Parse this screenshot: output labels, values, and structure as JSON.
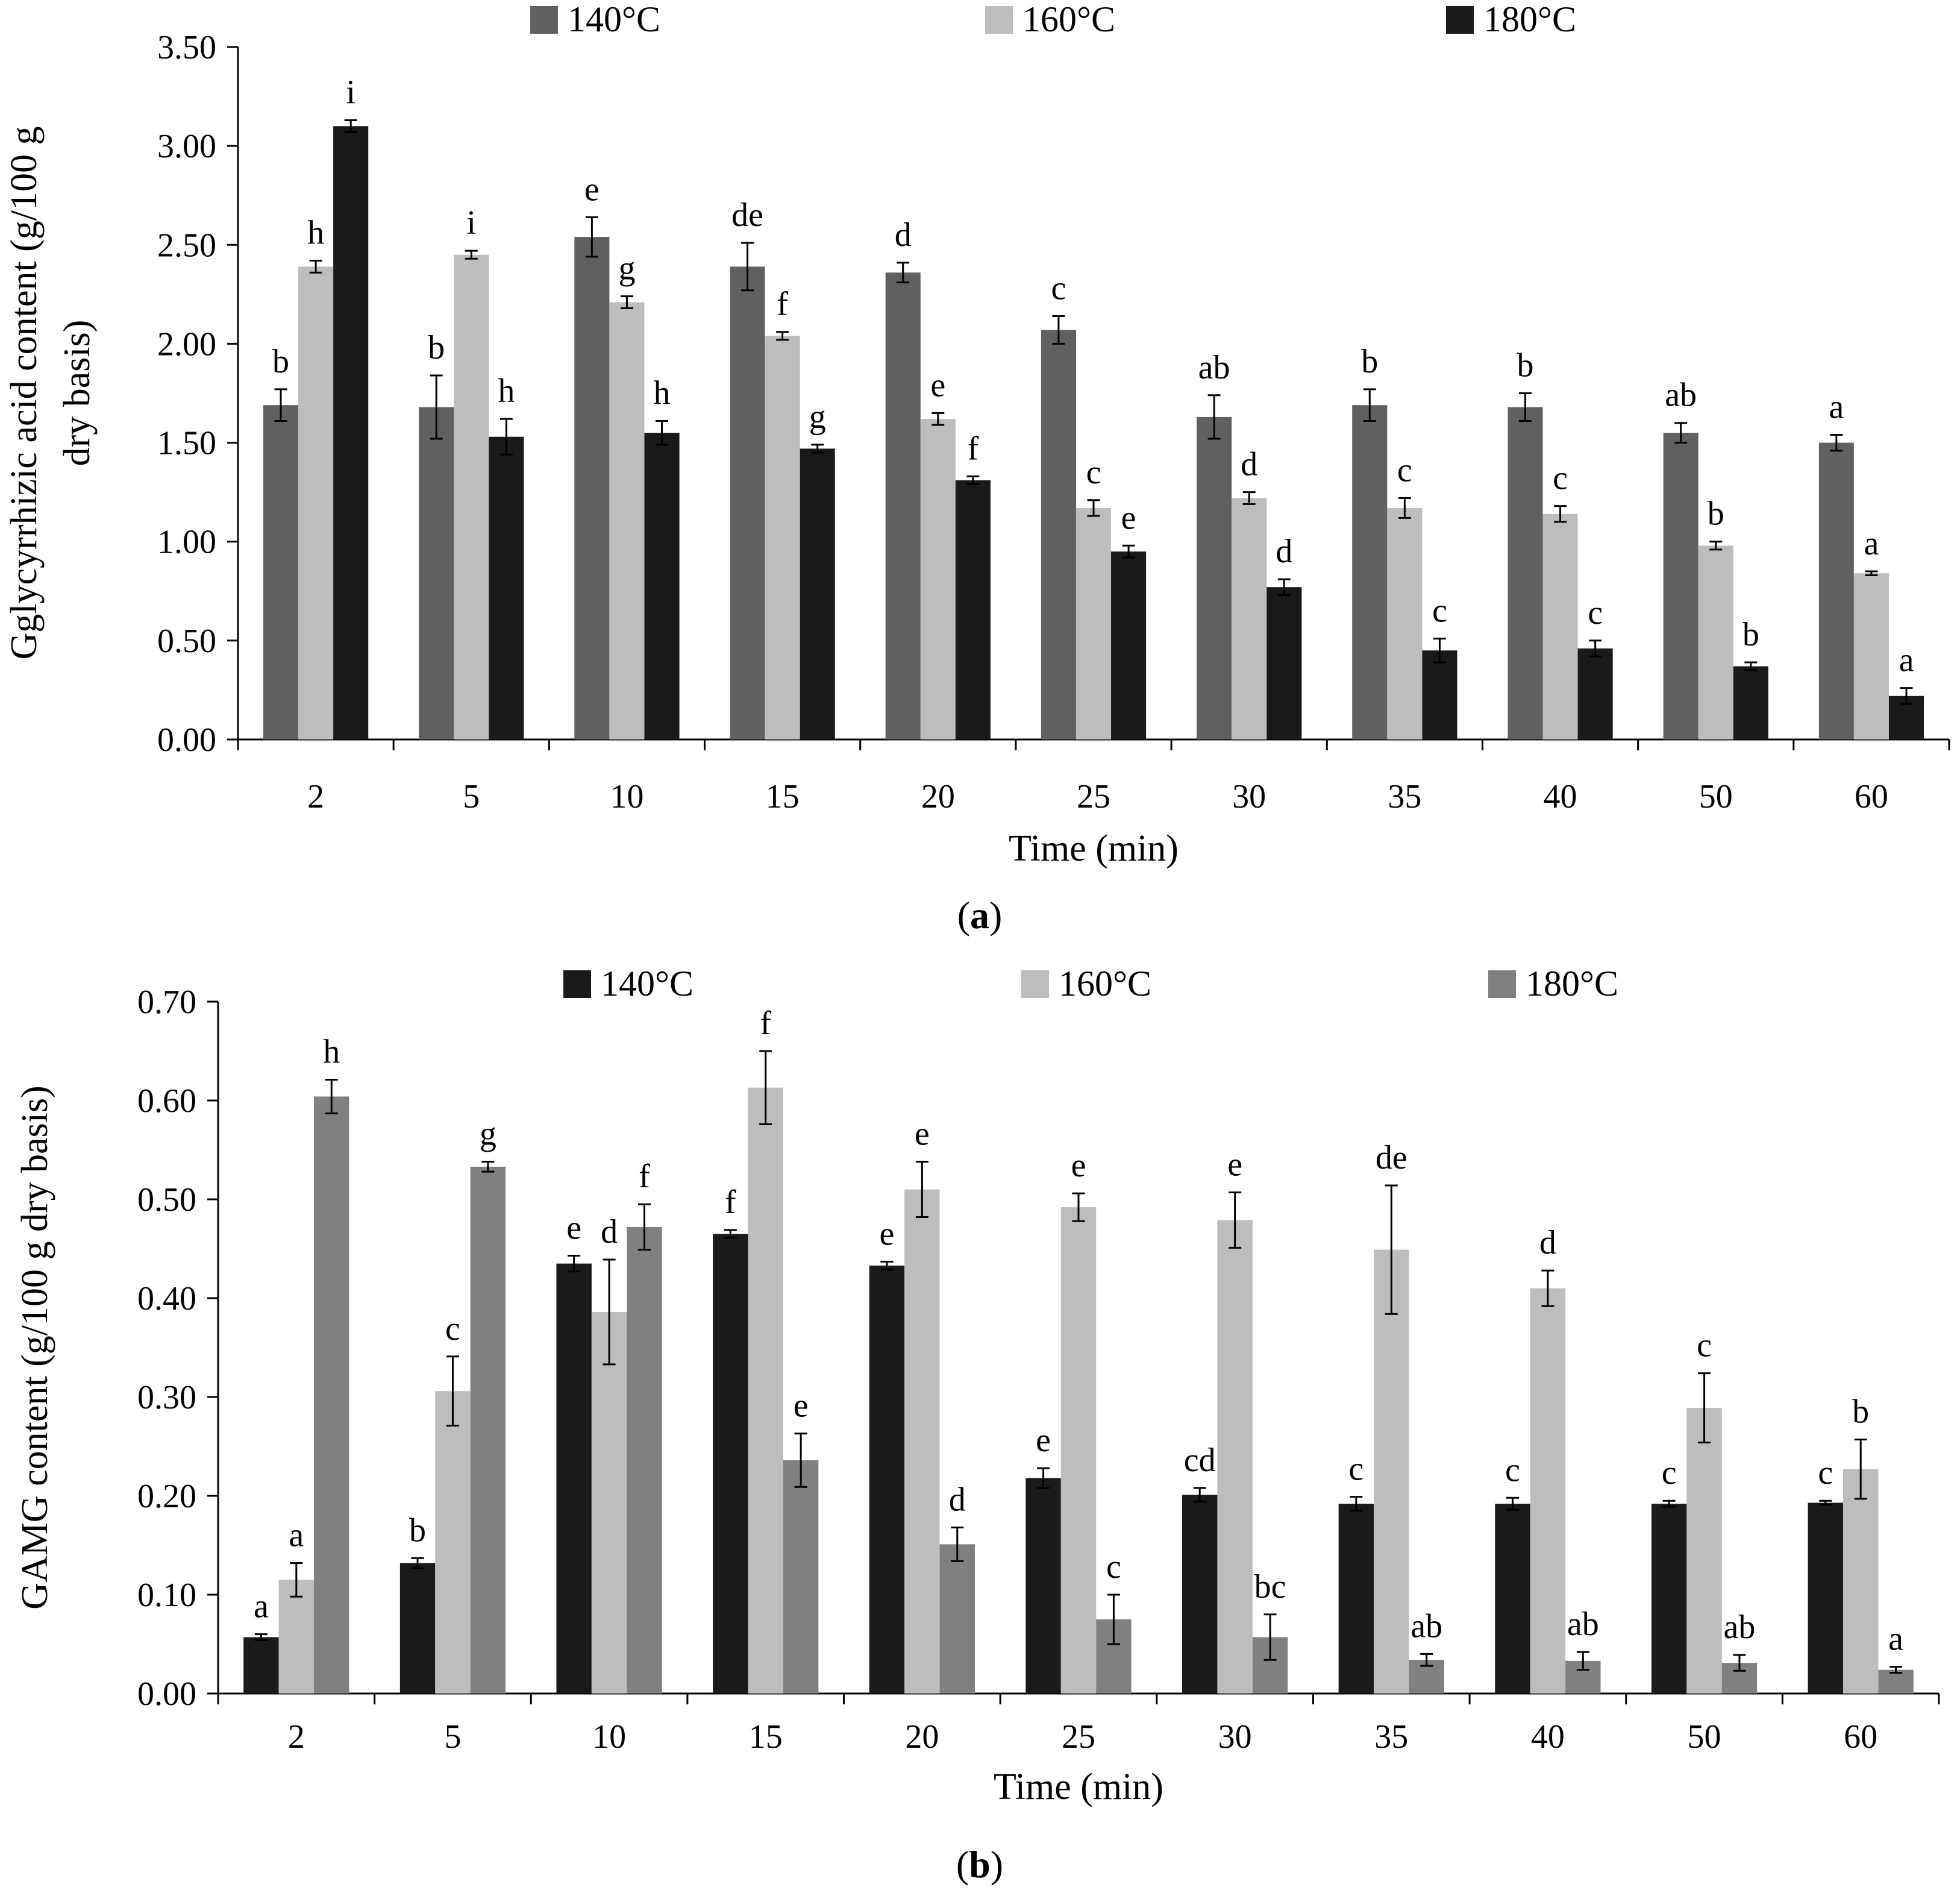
{
  "chart_data": [
    {
      "type": "bar",
      "panel_label": "(a)",
      "panel_letter": "a",
      "title": "",
      "xlabel": "Time  (min)",
      "ylabel_lines": [
        "Gglycyrrhizic acid content (g/100 g",
        "dry basis)"
      ],
      "ylim": [
        0,
        3.5
      ],
      "y_ticks": [
        "0.00",
        "0.50",
        "1.00",
        "1.50",
        "2.00",
        "2.50",
        "3.00",
        "3.50"
      ],
      "categories": [
        "2",
        "5",
        "10",
        "15",
        "20",
        "25",
        "30",
        "35",
        "40",
        "50",
        "60"
      ],
      "legend_position": "top",
      "grid": false,
      "series": [
        {
          "name": "140°C",
          "color": "#606060",
          "values": [
            1.69,
            1.68,
            2.54,
            2.39,
            2.36,
            2.07,
            1.63,
            1.69,
            1.68,
            1.55,
            1.5
          ],
          "errors": [
            0.08,
            0.16,
            0.1,
            0.12,
            0.05,
            0.07,
            0.11,
            0.08,
            0.07,
            0.05,
            0.04
          ],
          "letters": [
            "b",
            "b",
            "e",
            "de",
            "d",
            "c",
            "ab",
            "b",
            "b",
            "ab",
            "a"
          ]
        },
        {
          "name": "160°C",
          "color": "#bdbdbd",
          "values": [
            2.39,
            2.45,
            2.21,
            2.04,
            1.62,
            1.17,
            1.22,
            1.17,
            1.14,
            0.98,
            0.84
          ],
          "errors": [
            0.03,
            0.02,
            0.03,
            0.02,
            0.03,
            0.04,
            0.03,
            0.05,
            0.04,
            0.02,
            0.01
          ],
          "letters": [
            "h",
            "i",
            "g",
            "f",
            "e",
            "c",
            "d",
            "c",
            "c",
            "b",
            "a"
          ]
        },
        {
          "name": "180°C",
          "color": "#1a1a1a",
          "values": [
            3.1,
            1.53,
            1.55,
            1.47,
            1.31,
            0.95,
            0.77,
            0.45,
            0.46,
            0.37,
            0.22
          ],
          "errors": [
            0.03,
            0.09,
            0.06,
            0.02,
            0.02,
            0.03,
            0.04,
            0.06,
            0.04,
            0.02,
            0.04
          ],
          "letters": [
            "i",
            "h",
            "h",
            "g",
            "f",
            "e",
            "d",
            "c",
            "c",
            "b",
            "a"
          ]
        }
      ]
    },
    {
      "type": "bar",
      "panel_label": "(b)",
      "panel_letter": "b",
      "title": "",
      "xlabel": "Time (min)",
      "ylabel_lines": [
        "GAMG content (g/100 g dry basis)"
      ],
      "ylim": [
        0,
        0.7
      ],
      "y_ticks": [
        "0.00",
        "0.10",
        "0.20",
        "0.30",
        "0.40",
        "0.50",
        "0.60",
        "0.70"
      ],
      "categories": [
        "2",
        "5",
        "10",
        "15",
        "20",
        "25",
        "30",
        "35",
        "40",
        "50",
        "60"
      ],
      "legend_position": "top",
      "grid": false,
      "series": [
        {
          "name": "140°C",
          "color": "#1a1a1a",
          "values": [
            0.057,
            0.132,
            0.435,
            0.465,
            0.433,
            0.218,
            0.201,
            0.192,
            0.192,
            0.192,
            0.193
          ],
          "errors": [
            0.003,
            0.005,
            0.008,
            0.004,
            0.004,
            0.01,
            0.007,
            0.007,
            0.006,
            0.003,
            0.002
          ],
          "letters": [
            "a",
            "b",
            "e",
            "f",
            "e",
            "e",
            "cd",
            "c",
            "c",
            "c",
            "c"
          ]
        },
        {
          "name": "160°C",
          "color": "#bdbdbd",
          "values": [
            0.115,
            0.306,
            0.386,
            0.613,
            0.51,
            0.492,
            0.479,
            0.449,
            0.41,
            0.289,
            0.227
          ],
          "errors": [
            0.017,
            0.035,
            0.053,
            0.037,
            0.028,
            0.014,
            0.028,
            0.065,
            0.018,
            0.035,
            0.03
          ],
          "letters": [
            "a",
            "c",
            "d",
            "f",
            "e",
            "e",
            "e",
            "de",
            "d",
            "c",
            "b"
          ]
        },
        {
          "name": "180°C",
          "color": "#808080",
          "values": [
            0.604,
            0.533,
            0.472,
            0.236,
            0.151,
            0.075,
            0.057,
            0.034,
            0.033,
            0.031,
            0.024
          ],
          "errors": [
            0.017,
            0.005,
            0.023,
            0.027,
            0.017,
            0.025,
            0.023,
            0.006,
            0.009,
            0.008,
            0.003
          ],
          "letters": [
            "h",
            "g",
            "f",
            "e",
            "d",
            "c",
            "bc",
            "ab",
            "ab",
            "ab",
            "a"
          ]
        }
      ]
    }
  ]
}
